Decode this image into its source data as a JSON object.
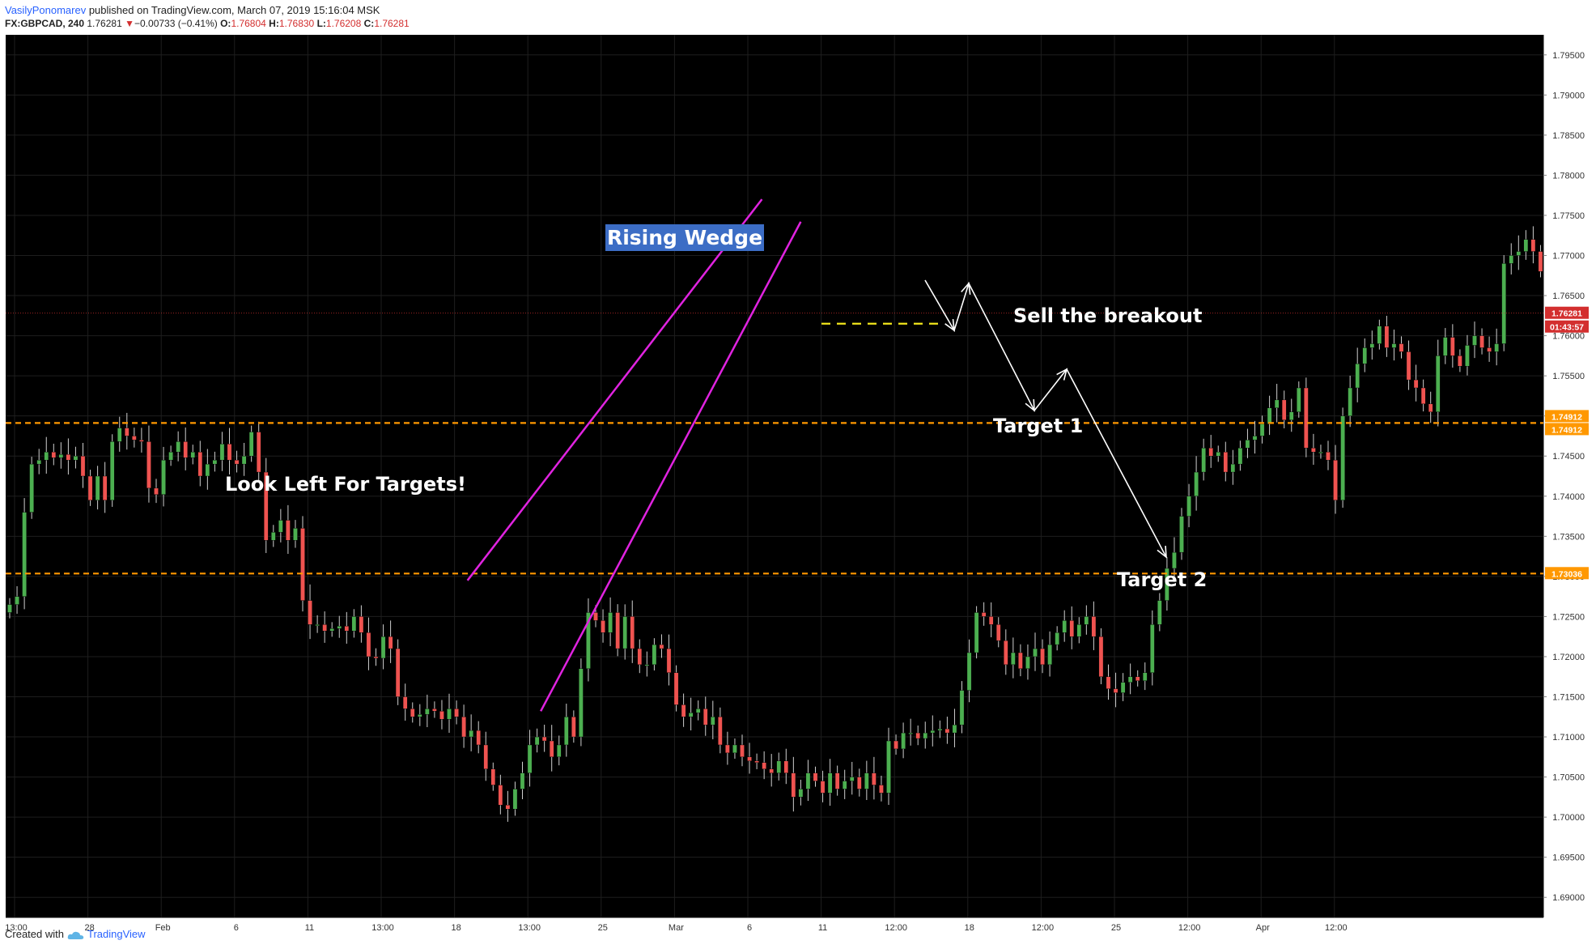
{
  "header": {
    "author": "VasilyPonomarev",
    "published_text": " published on TradingView.com, March 07, 2019 15:16:04 MSK",
    "symbol": "FX:GBPCAD, 240",
    "last": "1.76281",
    "change_arrow": "▼",
    "change": "−0.00733 (−0.41%)",
    "o_label": "O:",
    "o_value": "1.76804",
    "h_label": "H:",
    "h_value": "1.76830",
    "l_label": "L:",
    "l_value": "1.76208",
    "c_label": "C:",
    "c_value": "1.76281"
  },
  "footer": {
    "created_with": "Created with",
    "brand": "TradingView",
    "logo_icon": "tradingview-cloud-icon"
  },
  "colors": {
    "background": "#000000",
    "grid": "#1e1e1e",
    "candle_up": "#4caf50",
    "candle_down": "#ef5350",
    "wedge": "#e023e0",
    "support": "#ff9800",
    "breakout_line": "#f2e61b",
    "last_price": "#d32f2f",
    "arrow": "#ffffff",
    "label_box": "#3c6dc5"
  },
  "chart_data": {
    "type": "candlestick",
    "symbol": "GBPCAD",
    "timeframe": "240",
    "ylim": [
      1.6875,
      1.7975
    ],
    "yticks": [
      "1.69000",
      "1.69500",
      "1.70000",
      "1.70500",
      "1.71000",
      "1.71500",
      "1.72000",
      "1.72500",
      "1.73000",
      "1.73500",
      "1.74000",
      "1.74500",
      "1.75000",
      "1.75500",
      "1.76000",
      "1.76500",
      "1.77000",
      "1.77500",
      "1.78000",
      "1.78500",
      "1.79000",
      "1.79500"
    ],
    "xticks": [
      "13:00",
      "28",
      "Feb",
      "6",
      "11",
      "13:00",
      "18",
      "13:00",
      "25",
      "Mar",
      "6",
      "11",
      "12:00",
      "18",
      "12:00",
      "25",
      "12:00",
      "Apr",
      "12:00"
    ],
    "bars": [
      1.7265,
      1.7275,
      1.738,
      1.744,
      1.7445,
      1.7455,
      1.7448,
      1.7452,
      1.7445,
      1.745,
      1.7425,
      1.7395,
      1.7425,
      1.7395,
      1.7468,
      1.7485,
      1.7475,
      1.747,
      1.7468,
      1.741,
      1.7402,
      1.7445,
      1.7455,
      1.7468,
      1.7448,
      1.7455,
      1.7425,
      1.744,
      1.7445,
      1.7465,
      1.7445,
      1.744,
      1.745,
      1.748,
      1.743,
      1.7345,
      1.7355,
      1.737,
      1.7345,
      1.736,
      1.727,
      1.724,
      1.724,
      1.7232,
      1.7235,
      1.7238,
      1.7232,
      1.725,
      1.723,
      1.72,
      1.7198,
      1.7225,
      1.721,
      1.715,
      1.7135,
      1.7125,
      1.7128,
      1.7135,
      1.7132,
      1.7122,
      1.7135,
      1.7125,
      1.71,
      1.7108,
      1.709,
      1.706,
      1.704,
      1.7015,
      1.701,
      1.7035,
      1.7055,
      1.709,
      1.71,
      1.7095,
      1.7075,
      1.709,
      1.7125,
      1.71,
      1.7185,
      1.7255,
      1.7245,
      1.723,
      1.7255,
      1.721,
      1.725,
      1.721,
      1.719,
      1.719,
      1.7215,
      1.721,
      1.718,
      1.714,
      1.7125,
      1.713,
      1.7135,
      1.7115,
      1.7125,
      1.709,
      1.708,
      1.709,
      1.7075,
      1.707,
      1.7068,
      1.706,
      1.7055,
      1.707,
      1.7055,
      1.7025,
      1.7035,
      1.7055,
      1.7045,
      1.703,
      1.7055,
      1.7035,
      1.7045,
      1.705,
      1.7035,
      1.7055,
      1.704,
      1.703,
      1.7095,
      1.7085,
      1.7105,
      1.7105,
      1.7098,
      1.7105,
      1.7108,
      1.711,
      1.7105,
      1.7115,
      1.7158,
      1.7205,
      1.7255,
      1.725,
      1.724,
      1.722,
      1.719,
      1.7205,
      1.7185,
      1.72,
      1.721,
      1.719,
      1.7215,
      1.723,
      1.7245,
      1.7225,
      1.724,
      1.725,
      1.7225,
      1.7175,
      1.716,
      1.7155,
      1.7168,
      1.7175,
      1.717,
      1.718,
      1.724,
      1.727,
      1.731,
      1.733,
      1.7375,
      1.74,
      1.743,
      1.746,
      1.745,
      1.7455,
      1.743,
      1.744,
      1.746,
      1.747,
      1.7475,
      1.749,
      1.751,
      1.752,
      1.7495,
      1.7505,
      1.7535,
      1.746,
      1.7455,
      1.7455,
      1.7445,
      1.7395,
      1.75,
      1.7535,
      1.7565,
      1.7585,
      1.759,
      1.7612,
      1.7585,
      1.759,
      1.758,
      1.7545,
      1.7535,
      1.7515,
      1.7505,
      1.7575,
      1.7598,
      1.7575,
      1.7562,
      1.7588,
      1.76,
      1.7585,
      1.758,
      1.759,
      1.769,
      1.77,
      1.7705,
      1.772,
      1.7705,
      1.768,
      1.7662,
      1.7628
    ],
    "support_levels": [
      1.74912,
      1.73036
    ],
    "resistance_level": 1.7615,
    "last_price": "1.76281",
    "last_price_value": 1.76281,
    "countdown": "01:43:57",
    "price_labels": [
      "1.74912",
      "1.74912",
      "1.73036"
    ],
    "annotations": {
      "rising_wedge": "Rising Wedge",
      "look_left": "Look Left For Targets!",
      "sell_breakout": "Sell the breakout",
      "target1": "Target 1",
      "target2": "Target 2"
    }
  }
}
